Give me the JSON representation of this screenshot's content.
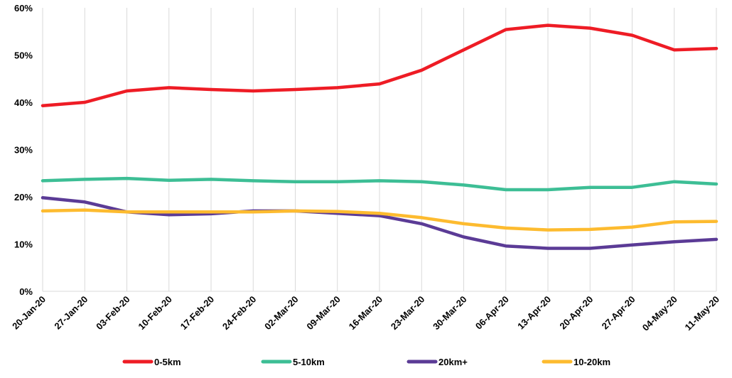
{
  "chart_data": {
    "type": "line",
    "title": "",
    "xlabel": "",
    "ylabel": "",
    "x": [
      "20-Jan-20",
      "27-Jan-20",
      "03-Feb-20",
      "10-Feb-20",
      "17-Feb-20",
      "24-Feb-20",
      "02-Mar-20",
      "09-Mar-20",
      "16-Mar-20",
      "23-Mar-20",
      "30-Mar-20",
      "06-Apr-20",
      "13-Apr-20",
      "20-Apr-20",
      "27-Apr-20",
      "04-May-20",
      "11-May-20"
    ],
    "ylim": [
      0,
      60
    ],
    "y_ticks": [
      0,
      10,
      20,
      30,
      40,
      50,
      60
    ],
    "y_tick_labels": [
      "0%",
      "10%",
      "20%",
      "30%",
      "40%",
      "50%",
      "60%"
    ],
    "grid": "vertical",
    "legend_position": "bottom",
    "series": [
      {
        "name": "0-5km",
        "color": "#EE1C25",
        "values": [
          39.3,
          40.0,
          42.4,
          43.1,
          42.7,
          42.4,
          42.7,
          43.1,
          43.9,
          46.8,
          51.1,
          55.4,
          56.3,
          55.7,
          54.2,
          51.1,
          51.4
        ]
      },
      {
        "name": "5-10km",
        "color": "#3DBE95",
        "values": [
          23.4,
          23.7,
          23.9,
          23.5,
          23.7,
          23.4,
          23.2,
          23.2,
          23.4,
          23.2,
          22.5,
          21.5,
          21.5,
          22.0,
          22.0,
          23.2,
          22.7
        ]
      },
      {
        "name": "20km+",
        "color": "#5B3B96",
        "values": [
          19.8,
          18.9,
          16.8,
          16.2,
          16.4,
          17.0,
          17.0,
          16.5,
          16.0,
          14.3,
          11.5,
          9.6,
          9.1,
          9.1,
          9.8,
          10.5,
          11.0
        ]
      },
      {
        "name": "10-20km",
        "color": "#FDBB2F",
        "values": [
          17.0,
          17.2,
          16.8,
          16.8,
          16.8,
          16.8,
          17.0,
          16.9,
          16.5,
          15.6,
          14.3,
          13.4,
          13.0,
          13.1,
          13.6,
          14.7,
          14.8
        ]
      }
    ]
  }
}
